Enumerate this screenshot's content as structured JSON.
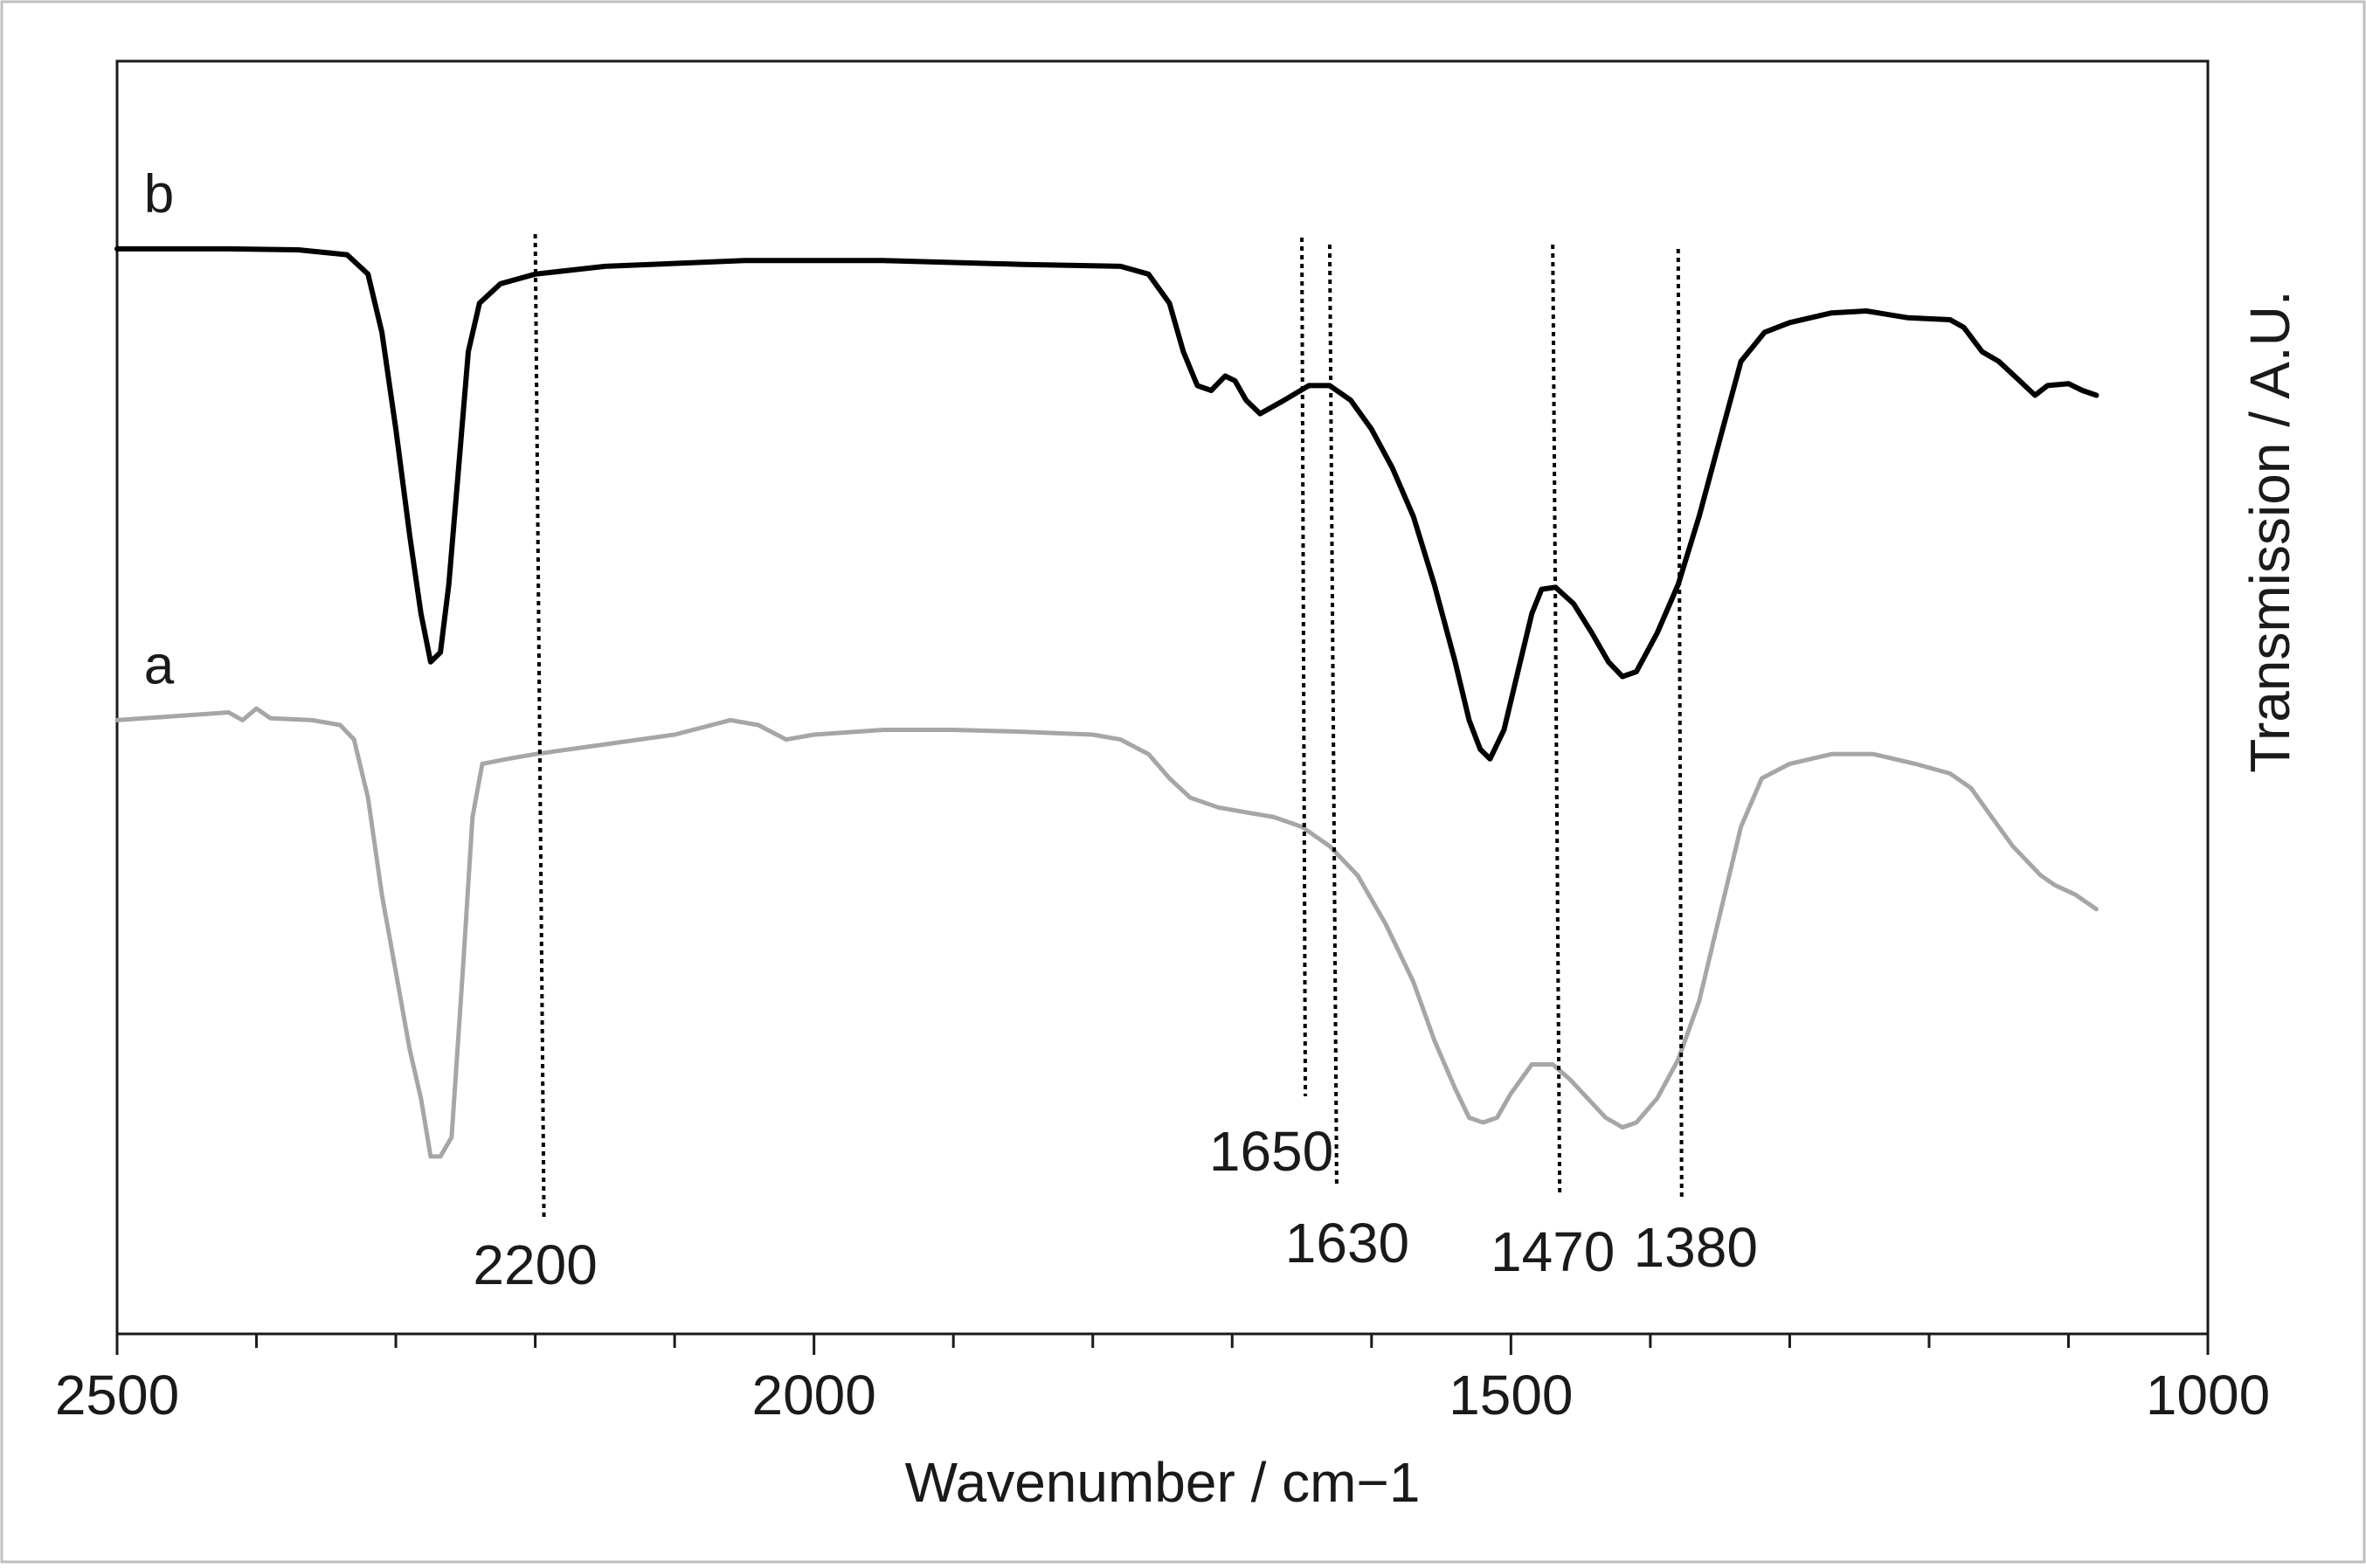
{
  "chart_data": {
    "type": "line",
    "xlabel": "Wavenumber / cm−1",
    "ylabel": "Transmission / A.U.",
    "xlim": [
      2500,
      1000
    ],
    "x_reversed": true,
    "x_ticks": [
      2500,
      2000,
      1500,
      1000
    ],
    "x_tick_labels": [
      "2500",
      "2000",
      "1500",
      "1000"
    ],
    "x_minor_tick_step": 100,
    "grid": false,
    "legend": "none",
    "y_units": "arbitrary (offset traces)",
    "series": [
      {
        "name": "b",
        "color": "#000000",
        "points": [
          [
            2500,
            94.6
          ],
          [
            2420,
            94.6
          ],
          [
            2370,
            94.5
          ],
          [
            2335,
            94.0
          ],
          [
            2320,
            92.0
          ],
          [
            2310,
            86.0
          ],
          [
            2300,
            76.0
          ],
          [
            2290,
            65.0
          ],
          [
            2282,
            57.0
          ],
          [
            2275,
            52.0
          ],
          [
            2268,
            53.0
          ],
          [
            2262,
            60.0
          ],
          [
            2255,
            72.0
          ],
          [
            2248,
            84.0
          ],
          [
            2240,
            89.0
          ],
          [
            2225,
            91.0
          ],
          [
            2200,
            92.0
          ],
          [
            2150,
            92.8
          ],
          [
            2050,
            93.4
          ],
          [
            1950,
            93.4
          ],
          [
            1850,
            93.0
          ],
          [
            1780,
            92.8
          ],
          [
            1760,
            92.0
          ],
          [
            1745,
            89.0
          ],
          [
            1735,
            84.0
          ],
          [
            1725,
            80.5
          ],
          [
            1715,
            80.0
          ],
          [
            1705,
            81.5
          ],
          [
            1698,
            81.0
          ],
          [
            1690,
            79.0
          ],
          [
            1680,
            77.6
          ],
          [
            1665,
            78.8
          ],
          [
            1645,
            80.5
          ],
          [
            1630,
            80.5
          ],
          [
            1615,
            79.0
          ],
          [
            1600,
            76.0
          ],
          [
            1585,
            72.0
          ],
          [
            1570,
            67.0
          ],
          [
            1555,
            60.0
          ],
          [
            1540,
            52.0
          ],
          [
            1530,
            46.0
          ],
          [
            1522,
            43.0
          ],
          [
            1515,
            42.0
          ],
          [
            1505,
            45.0
          ],
          [
            1495,
            51.0
          ],
          [
            1485,
            57.0
          ],
          [
            1478,
            59.5
          ],
          [
            1468,
            59.7
          ],
          [
            1455,
            58.0
          ],
          [
            1442,
            55.0
          ],
          [
            1430,
            52.0
          ],
          [
            1420,
            50.5
          ],
          [
            1410,
            51.0
          ],
          [
            1395,
            55.0
          ],
          [
            1380,
            60.0
          ],
          [
            1365,
            67.0
          ],
          [
            1350,
            75.0
          ],
          [
            1335,
            83.0
          ],
          [
            1318,
            86.0
          ],
          [
            1300,
            87.0
          ],
          [
            1270,
            88.0
          ],
          [
            1245,
            88.2
          ],
          [
            1215,
            87.5
          ],
          [
            1185,
            87.3
          ],
          [
            1175,
            86.5
          ],
          [
            1162,
            84.0
          ],
          [
            1150,
            83.0
          ],
          [
            1135,
            81.0
          ],
          [
            1124,
            79.5
          ],
          [
            1115,
            80.5
          ],
          [
            1100,
            80.7
          ],
          [
            1090,
            80.0
          ],
          [
            1080,
            79.5
          ]
        ]
      },
      {
        "name": "a",
        "color": "#a6a6a6",
        "points": [
          [
            2500,
            46.0
          ],
          [
            2450,
            46.5
          ],
          [
            2420,
            46.8
          ],
          [
            2410,
            46.0
          ],
          [
            2400,
            47.2
          ],
          [
            2390,
            46.2
          ],
          [
            2360,
            46.0
          ],
          [
            2340,
            45.5
          ],
          [
            2330,
            44.0
          ],
          [
            2320,
            38.0
          ],
          [
            2310,
            28.0
          ],
          [
            2300,
            20.0
          ],
          [
            2290,
            12.0
          ],
          [
            2282,
            7.0
          ],
          [
            2275,
            1.0
          ],
          [
            2268,
            1.0
          ],
          [
            2260,
            3.0
          ],
          [
            2252,
            20.0
          ],
          [
            2245,
            36.0
          ],
          [
            2238,
            41.5
          ],
          [
            2220,
            42.0
          ],
          [
            2200,
            42.5
          ],
          [
            2150,
            43.5
          ],
          [
            2100,
            44.5
          ],
          [
            2060,
            46.0
          ],
          [
            2040,
            45.5
          ],
          [
            2020,
            44.0
          ],
          [
            2000,
            44.5
          ],
          [
            1950,
            45.0
          ],
          [
            1900,
            45.0
          ],
          [
            1850,
            44.8
          ],
          [
            1800,
            44.5
          ],
          [
            1780,
            44.0
          ],
          [
            1760,
            42.5
          ],
          [
            1745,
            40.0
          ],
          [
            1730,
            38.0
          ],
          [
            1710,
            37.0
          ],
          [
            1690,
            36.5
          ],
          [
            1670,
            36.0
          ],
          [
            1650,
            35.0
          ],
          [
            1630,
            33.0
          ],
          [
            1610,
            30.0
          ],
          [
            1590,
            25.0
          ],
          [
            1570,
            19.0
          ],
          [
            1555,
            13.0
          ],
          [
            1540,
            8.0
          ],
          [
            1530,
            5.0
          ],
          [
            1520,
            4.5
          ],
          [
            1510,
            5.0
          ],
          [
            1500,
            7.5
          ],
          [
            1485,
            10.5
          ],
          [
            1470,
            10.5
          ],
          [
            1458,
            9.0
          ],
          [
            1445,
            7.0
          ],
          [
            1432,
            5.0
          ],
          [
            1420,
            4.0
          ],
          [
            1410,
            4.5
          ],
          [
            1395,
            7.0
          ],
          [
            1380,
            11.0
          ],
          [
            1365,
            17.0
          ],
          [
            1350,
            26.0
          ],
          [
            1335,
            35.0
          ],
          [
            1320,
            40.0
          ],
          [
            1300,
            41.5
          ],
          [
            1270,
            42.5
          ],
          [
            1240,
            42.5
          ],
          [
            1210,
            41.5
          ],
          [
            1185,
            40.5
          ],
          [
            1170,
            39.0
          ],
          [
            1155,
            36.0
          ],
          [
            1140,
            33.0
          ],
          [
            1120,
            30.0
          ],
          [
            1110,
            29.0
          ],
          [
            1095,
            28.0
          ],
          [
            1080,
            26.5
          ]
        ]
      }
    ],
    "series_labels": [
      {
        "text": "b",
        "series": "b"
      },
      {
        "text": "a",
        "series": "a"
      }
    ],
    "annotations": [
      {
        "text": "2200",
        "x": 2200
      },
      {
        "text": "1650",
        "x": 1650
      },
      {
        "text": "1630",
        "x": 1630
      },
      {
        "text": "1470",
        "x": 1470
      },
      {
        "text": "1380",
        "x": 1380
      }
    ]
  }
}
